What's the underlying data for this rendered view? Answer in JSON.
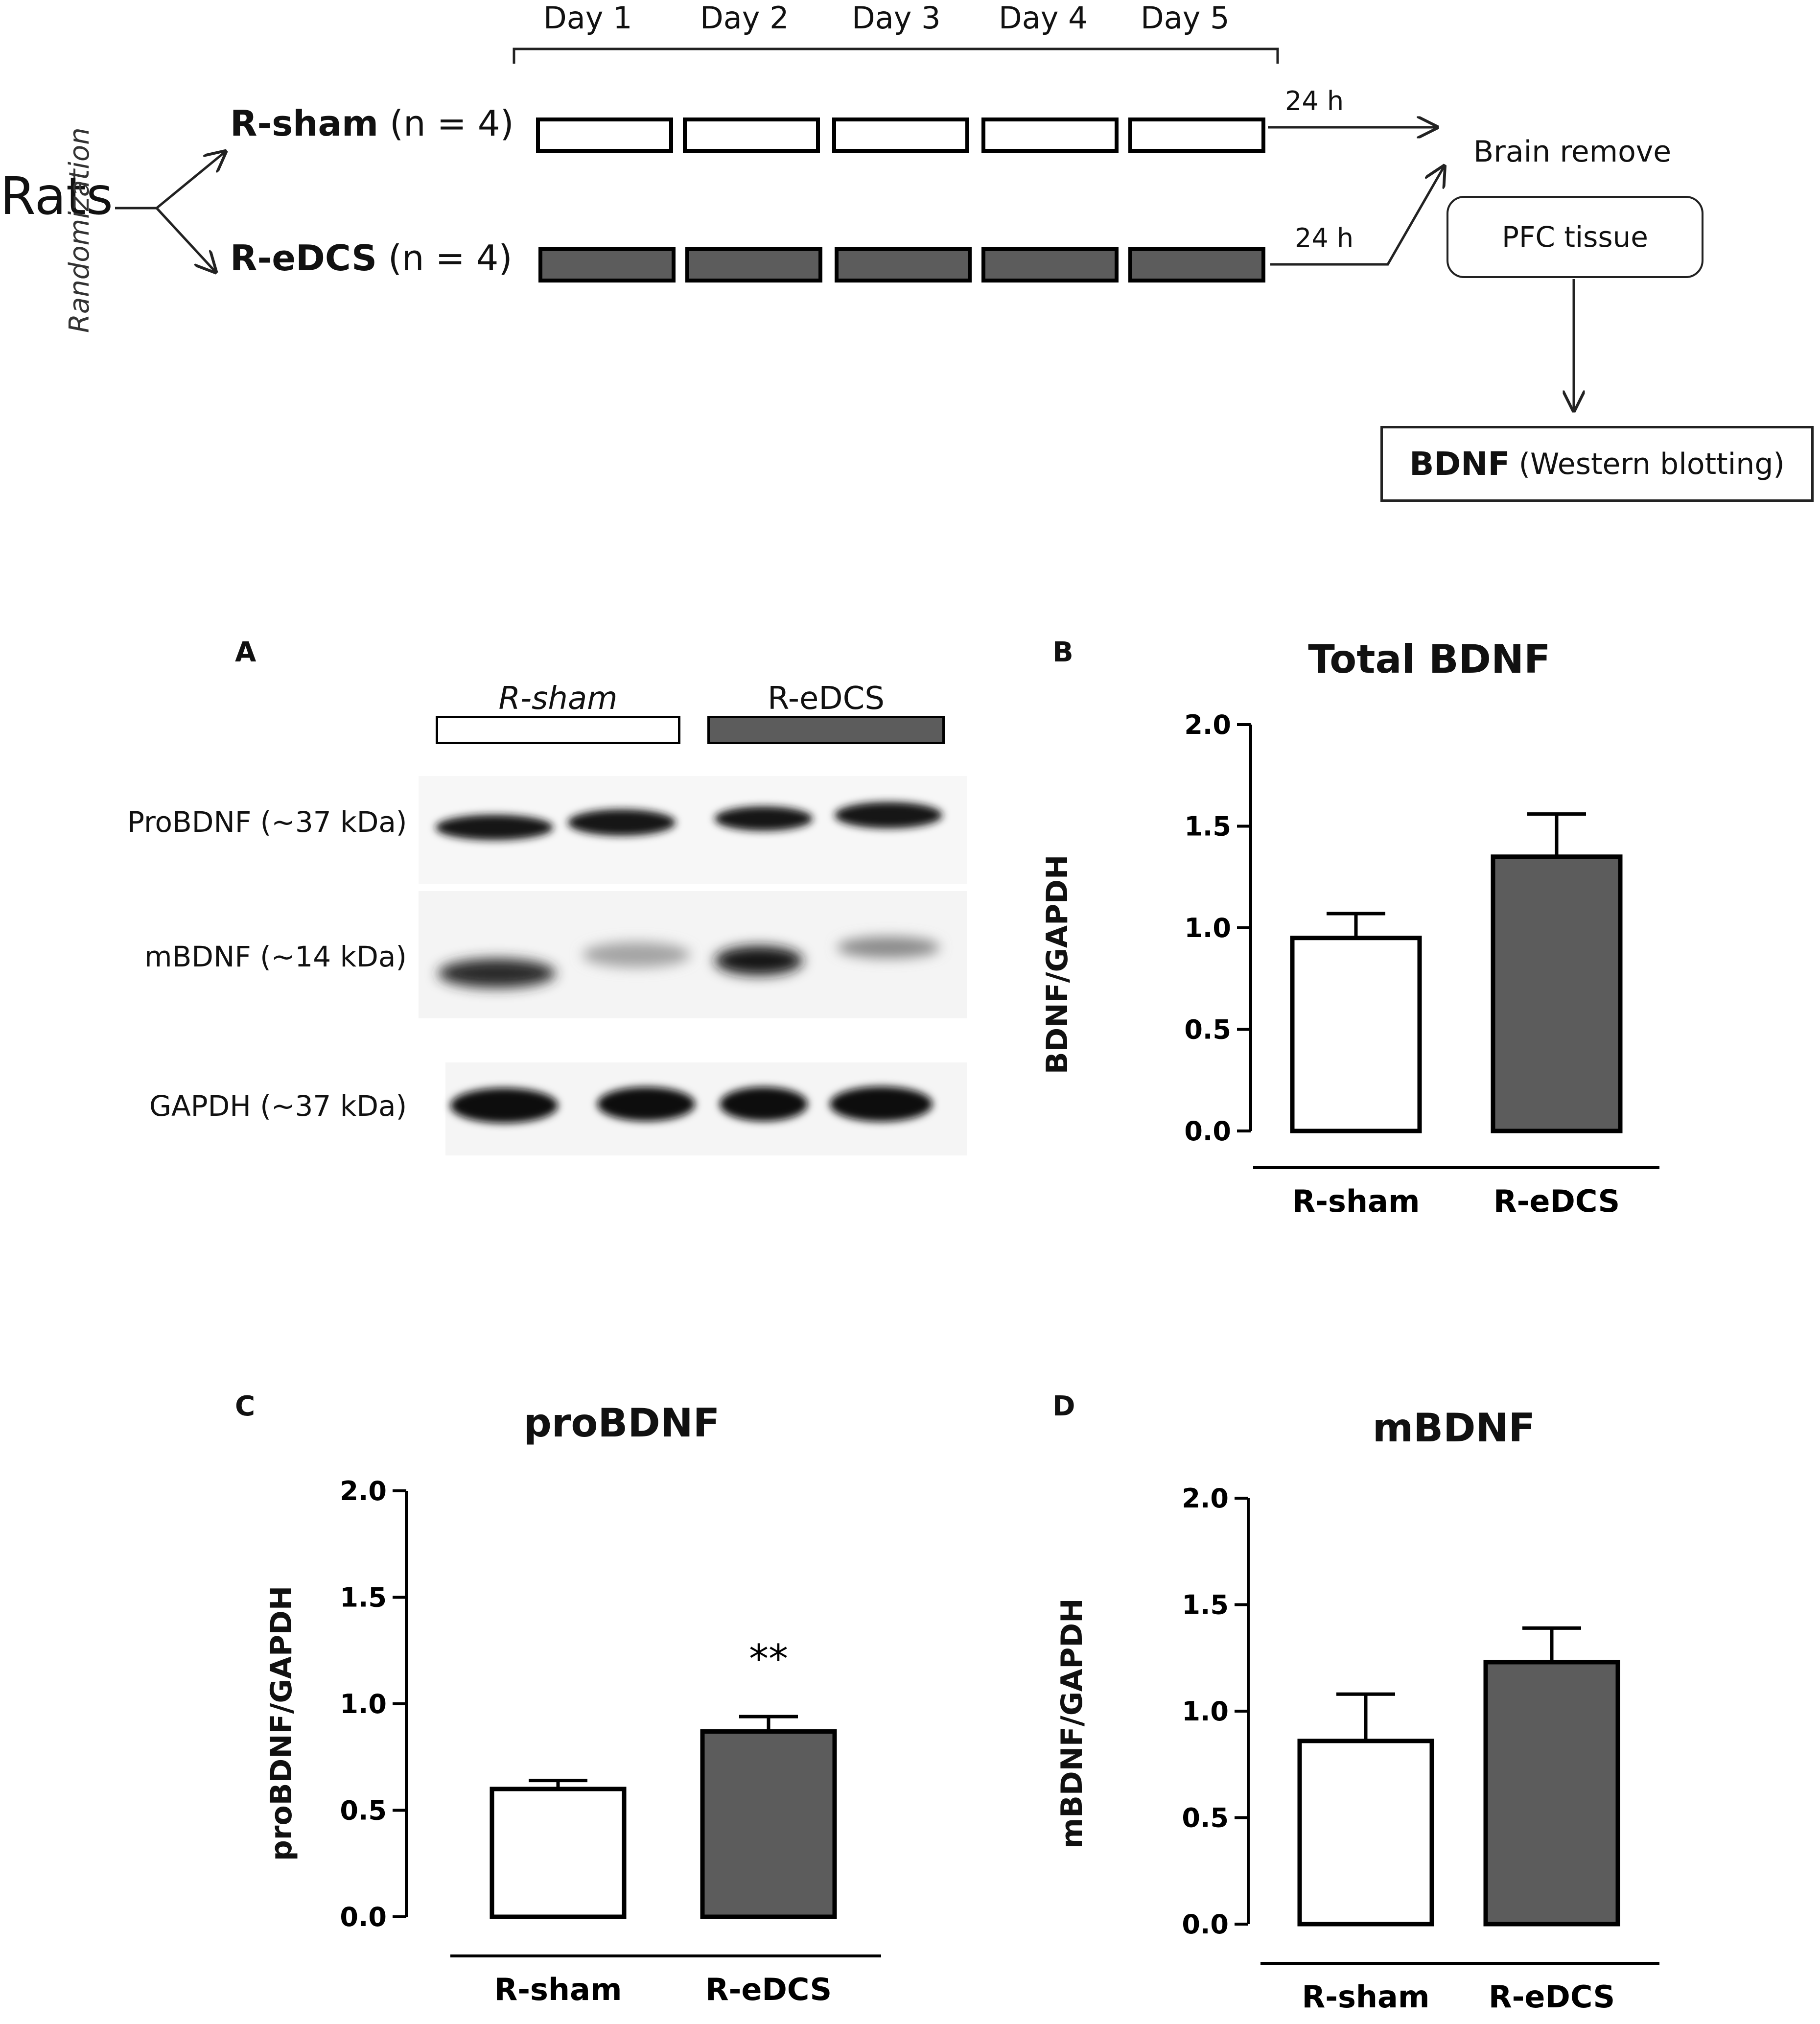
{
  "schematic": {
    "rats_label": "Rats",
    "randomization_label": "Randomization",
    "days": [
      "Day 1",
      "Day 2",
      "Day 3",
      "Day 4",
      "Day 5"
    ],
    "groups": [
      {
        "name": "R-sham",
        "n": "(n = 4)",
        "fill": "#ffffff"
      },
      {
        "name": "R-eDCS",
        "n": "(n = 4)",
        "fill": "#5c5c5c"
      }
    ],
    "interval_top": "24 h",
    "interval_bottom": "24 h",
    "brain_remove": "Brain remove",
    "pfc_tissue": "PFC tissue",
    "bdnf_label": "BDNF",
    "bdnf_method": "(Western blotting)"
  },
  "blot": {
    "panel_letter": "A",
    "lane_groups": [
      "R-sham",
      "R-eDCS"
    ],
    "rows": [
      "ProBDNF (~37 kDa)",
      "mBDNF (~14 kDa)",
      "GAPDH (~37 kDa)"
    ]
  },
  "colors": {
    "sham": "#ffffff",
    "edcs": "#5c5c5c",
    "axis": "#000000"
  },
  "chart_data": [
    {
      "panel": "B",
      "type": "bar",
      "title": "Total BDNF",
      "ylabel": "BDNF/GAPDH",
      "categories": [
        "R-sham",
        "R-eDCS"
      ],
      "values": [
        0.95,
        1.35
      ],
      "errors": [
        0.12,
        0.21
      ],
      "ylim": [
        0,
        2.0
      ],
      "yticks": [
        "0.0",
        "0.5",
        "1.0",
        "1.5",
        "2.0"
      ],
      "annotations": []
    },
    {
      "panel": "C",
      "type": "bar",
      "title": "proBDNF",
      "ylabel": "proBDNF/GAPDH",
      "categories": [
        "R-sham",
        "R-eDCS"
      ],
      "values": [
        0.6,
        0.87
      ],
      "errors": [
        0.04,
        0.07
      ],
      "ylim": [
        0,
        2.0
      ],
      "yticks": [
        "0.0",
        "0.5",
        "1.0",
        "1.5",
        "2.0"
      ],
      "annotations": [
        "",
        "**"
      ]
    },
    {
      "panel": "D",
      "type": "bar",
      "title": "mBDNF",
      "ylabel": "mBDNF/GAPDH",
      "categories": [
        "R-sham",
        "R-eDCS"
      ],
      "values": [
        0.86,
        1.23
      ],
      "errors": [
        0.22,
        0.16
      ],
      "ylim": [
        0,
        2.0
      ],
      "yticks": [
        "0.0",
        "0.5",
        "1.0",
        "1.5",
        "2.0"
      ],
      "annotations": []
    }
  ]
}
